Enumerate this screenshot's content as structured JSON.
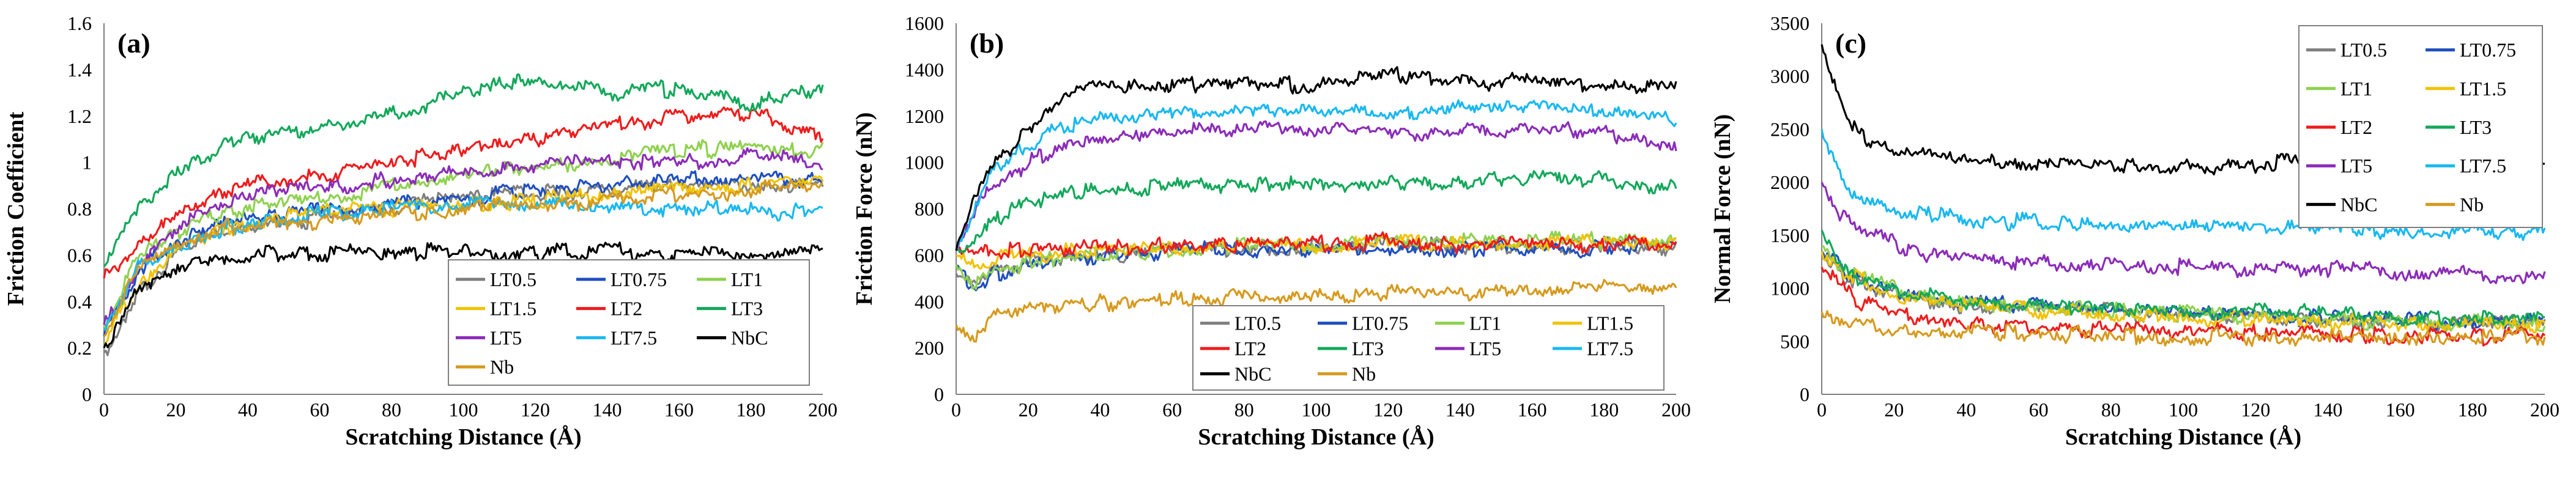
{
  "series_colors": {
    "LT0.5": "#7f7f7f",
    "LT0.75": "#1f4fbf",
    "LT1": "#8fd14f",
    "LT1.5": "#f2c200",
    "LT2": "#ee1c1c",
    "LT3": "#12a85a",
    "LT5": "#8b2cb8",
    "LT7.5": "#19b8f0",
    "NbC": "#000000",
    "Nb": "#d69a1e"
  },
  "chart_data": [
    {
      "type": "line",
      "panel_label": "(a)",
      "title": "",
      "xlabel": "Scratching Distance (Å)",
      "ylabel": "Friction Coefficient",
      "xlim": [
        0,
        200
      ],
      "ylim": [
        0,
        1.6
      ],
      "x_ticks": [
        "0",
        "20",
        "40",
        "60",
        "80",
        "100",
        "120",
        "140",
        "160",
        "180",
        "200"
      ],
      "y_ticks": [
        "0",
        "0.2",
        "0.4",
        "0.6",
        "0.8",
        "1",
        "1.2",
        "1.4",
        "1.6"
      ],
      "legend_position": "bottom-right",
      "legend_order": [
        "LT0.5",
        "LT0.75",
        "LT1",
        "LT1.5",
        "LT2",
        "LT3",
        "LT5",
        "LT7.5",
        "NbC",
        "Nb"
      ],
      "x": [
        0,
        10,
        20,
        30,
        40,
        60,
        80,
        100,
        120,
        140,
        160,
        180,
        200
      ],
      "series": [
        {
          "name": "LT0.5",
          "values": [
            0.18,
            0.45,
            0.6,
            0.68,
            0.72,
            0.76,
            0.8,
            0.85,
            0.87,
            0.88,
            0.9,
            0.91,
            0.9
          ]
        },
        {
          "name": "LT0.75",
          "values": [
            0.25,
            0.55,
            0.66,
            0.72,
            0.75,
            0.79,
            0.82,
            0.84,
            0.88,
            0.9,
            0.92,
            0.93,
            0.92
          ]
        },
        {
          "name": "LT1",
          "values": [
            0.3,
            0.6,
            0.7,
            0.76,
            0.8,
            0.84,
            0.9,
            0.95,
            0.98,
            1.02,
            1.05,
            1.07,
            1.05
          ]
        },
        {
          "name": "LT1.5",
          "values": [
            0.22,
            0.5,
            0.62,
            0.7,
            0.74,
            0.78,
            0.8,
            0.82,
            0.84,
            0.86,
            0.88,
            0.9,
            0.92
          ]
        },
        {
          "name": "LT2",
          "values": [
            0.5,
            0.65,
            0.78,
            0.85,
            0.9,
            0.95,
            1.0,
            1.05,
            1.1,
            1.15,
            1.2,
            1.22,
            1.1
          ]
        },
        {
          "name": "LT3",
          "values": [
            0.55,
            0.8,
            0.95,
            1.05,
            1.1,
            1.15,
            1.2,
            1.3,
            1.35,
            1.3,
            1.32,
            1.25,
            1.32
          ]
        },
        {
          "name": "LT5",
          "values": [
            0.3,
            0.55,
            0.7,
            0.8,
            0.85,
            0.9,
            0.92,
            0.95,
            0.98,
            1.0,
            1.01,
            1.02,
            1.0
          ]
        },
        {
          "name": "LT7.5",
          "values": [
            0.28,
            0.55,
            0.65,
            0.7,
            0.74,
            0.78,
            0.8,
            0.82,
            0.82,
            0.8,
            0.8,
            0.79,
            0.78
          ]
        },
        {
          "name": "NbC",
          "values": [
            0.2,
            0.45,
            0.55,
            0.6,
            0.6,
            0.61,
            0.62,
            0.62,
            0.61,
            0.62,
            0.6,
            0.6,
            0.61
          ]
        },
        {
          "name": "Nb",
          "values": [
            0.25,
            0.55,
            0.64,
            0.7,
            0.74,
            0.75,
            0.78,
            0.8,
            0.82,
            0.84,
            0.86,
            0.88,
            0.9
          ]
        }
      ]
    },
    {
      "type": "line",
      "panel_label": "(b)",
      "title": "",
      "xlabel": "Scratching Distance (Å)",
      "ylabel": "Friction Force (nN)",
      "xlim": [
        0,
        200
      ],
      "ylim": [
        0,
        1600
      ],
      "x_ticks": [
        "0",
        "20",
        "40",
        "60",
        "80",
        "100",
        "120",
        "140",
        "160",
        "180",
        "200"
      ],
      "y_ticks": [
        "0",
        "200",
        "400",
        "600",
        "800",
        "1000",
        "1200",
        "1400",
        "1600"
      ],
      "legend_position": "bottom-right",
      "legend_order": [
        "LT0.5",
        "LT0.75",
        "LT1",
        "LT1.5",
        "LT2",
        "LT3",
        "LT5",
        "LT7.5",
        "NbC",
        "Nb"
      ],
      "x": [
        0,
        5,
        10,
        20,
        30,
        40,
        60,
        80,
        100,
        120,
        140,
        160,
        180,
        200
      ],
      "series": [
        {
          "name": "LT0.5",
          "values": [
            520,
            460,
            520,
            570,
            590,
            600,
            620,
            630,
            635,
            640,
            640,
            645,
            640,
            640
          ]
        },
        {
          "name": "LT0.75",
          "values": [
            550,
            470,
            510,
            560,
            585,
            600,
            615,
            625,
            630,
            632,
            630,
            628,
            630,
            625
          ]
        },
        {
          "name": "LT1",
          "values": [
            560,
            480,
            520,
            560,
            590,
            605,
            625,
            640,
            645,
            650,
            660,
            670,
            660,
            650
          ]
        },
        {
          "name": "LT1.5",
          "values": [
            600,
            560,
            580,
            600,
            610,
            620,
            630,
            640,
            645,
            650,
            655,
            660,
            650,
            655
          ]
        },
        {
          "name": "LT2",
          "values": [
            620,
            600,
            610,
            620,
            630,
            635,
            640,
            645,
            650,
            660,
            650,
            645,
            650,
            640
          ]
        },
        {
          "name": "LT3",
          "values": [
            620,
            680,
            750,
            820,
            860,
            880,
            900,
            905,
            900,
            910,
            920,
            930,
            920,
            880
          ]
        },
        {
          "name": "LT5",
          "values": [
            620,
            780,
            900,
            1000,
            1060,
            1100,
            1140,
            1150,
            1140,
            1130,
            1140,
            1150,
            1130,
            1080
          ]
        },
        {
          "name": "LT7.5",
          "values": [
            620,
            820,
            950,
            1080,
            1150,
            1180,
            1200,
            1220,
            1230,
            1210,
            1230,
            1240,
            1220,
            1180
          ]
        },
        {
          "name": "NbC",
          "values": [
            620,
            850,
            1000,
            1130,
            1300,
            1320,
            1330,
            1340,
            1330,
            1380,
            1340,
            1350,
            1320,
            1330
          ]
        },
        {
          "name": "Nb",
          "values": [
            300,
            250,
            330,
            370,
            380,
            390,
            410,
            420,
            430,
            430,
            440,
            450,
            460,
            470
          ]
        }
      ]
    },
    {
      "type": "line",
      "panel_label": "(c)",
      "title": "",
      "xlabel": "Scratching Distance (Å)",
      "ylabel": "Normal Force (nN)",
      "xlim": [
        0,
        200
      ],
      "ylim": [
        0,
        3500
      ],
      "x_ticks": [
        "0",
        "20",
        "40",
        "60",
        "80",
        "100",
        "120",
        "140",
        "160",
        "180",
        "200"
      ],
      "y_ticks": [
        "0",
        "500",
        "1000",
        "1500",
        "2000",
        "2500",
        "3000",
        "3500"
      ],
      "legend_position": "top-right",
      "legend_order": [
        "LT0.5",
        "LT0.75",
        "LT1",
        "LT1.5",
        "LT2",
        "LT3",
        "LT5",
        "LT7.5",
        "NbC",
        "Nb"
      ],
      "x": [
        0,
        5,
        10,
        20,
        30,
        40,
        60,
        80,
        100,
        120,
        140,
        160,
        180,
        200
      ],
      "series": [
        {
          "name": "LT0.5",
          "values": [
            1300,
            1150,
            1050,
            950,
            880,
            840,
            800,
            770,
            740,
            720,
            700,
            690,
            680,
            670
          ]
        },
        {
          "name": "LT0.75",
          "values": [
            1350,
            1200,
            1100,
            980,
            900,
            860,
            840,
            810,
            780,
            740,
            710,
            700,
            690,
            680
          ]
        },
        {
          "name": "LT1",
          "values": [
            1400,
            1220,
            1120,
            990,
            910,
            850,
            820,
            790,
            760,
            720,
            700,
            680,
            670,
            660
          ]
        },
        {
          "name": "LT1.5",
          "values": [
            1350,
            1180,
            1080,
            960,
            880,
            830,
            800,
            760,
            730,
            700,
            680,
            670,
            660,
            650
          ]
        },
        {
          "name": "LT2",
          "values": [
            1200,
            1000,
            880,
            760,
            700,
            660,
            630,
            610,
            600,
            580,
            570,
            560,
            550,
            550
          ]
        },
        {
          "name": "LT3",
          "values": [
            1550,
            1250,
            1120,
            1000,
            920,
            880,
            840,
            820,
            800,
            780,
            760,
            740,
            720,
            700
          ]
        },
        {
          "name": "LT5",
          "values": [
            2000,
            1700,
            1550,
            1420,
            1330,
            1280,
            1240,
            1220,
            1200,
            1180,
            1180,
            1160,
            1130,
            1110
          ]
        },
        {
          "name": "LT7.5",
          "values": [
            2500,
            2050,
            1850,
            1750,
            1700,
            1650,
            1620,
            1580,
            1560,
            1550,
            1560,
            1550,
            1540,
            1540
          ]
        },
        {
          "name": "NbC",
          "values": [
            3300,
            2800,
            2450,
            2300,
            2250,
            2200,
            2180,
            2170,
            2160,
            2170,
            2180,
            2200,
            2220,
            2180
          ]
        },
        {
          "name": "Nb",
          "values": [
            780,
            700,
            660,
            610,
            590,
            580,
            570,
            560,
            550,
            540,
            540,
            540,
            550,
            550
          ]
        }
      ]
    }
  ]
}
